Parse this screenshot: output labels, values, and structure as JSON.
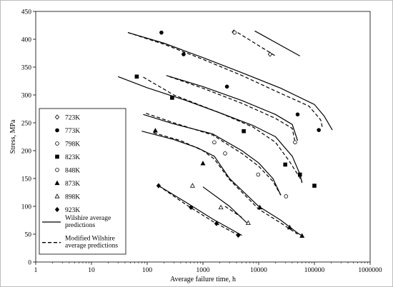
{
  "chart_data": {
    "type": "scatter",
    "xlabel": "Average failure time, h",
    "ylabel": "Stress, MPa",
    "xscale": "log",
    "xlim": [
      1,
      1000000
    ],
    "ylim": [
      0,
      450
    ],
    "x_ticks": [
      "1",
      "10",
      "100",
      "1000",
      "10000",
      "100000",
      "1000000"
    ],
    "y_ticks": [
      "0",
      "50",
      "100",
      "150",
      "200",
      "250",
      "300",
      "350",
      "400",
      "450"
    ],
    "grid": false,
    "legend_position": "lower-left",
    "series": [
      {
        "name": "723K",
        "marker": "diamond-open",
        "points": [
          [
            3600,
            413
          ],
          [
            16000,
            373
          ]
        ]
      },
      {
        "name": "773K",
        "marker": "circle-filled",
        "points": [
          [
            180,
            412
          ],
          [
            450,
            373
          ],
          [
            2700,
            315
          ],
          [
            50000,
            265
          ],
          [
            120000,
            237
          ]
        ]
      },
      {
        "name": "798K",
        "marker": "circle-open",
        "points": [
          [
            3700,
            412
          ],
          [
            45000,
            215
          ]
        ]
      },
      {
        "name": "823K",
        "marker": "square-filled",
        "points": [
          [
            65,
            333
          ],
          [
            280,
            295
          ],
          [
            5400,
            235
          ],
          [
            30000,
            175
          ],
          [
            55000,
            157
          ],
          [
            100000,
            137
          ]
        ]
      },
      {
        "name": "848K",
        "marker": "circle-open",
        "points": [
          [
            1600,
            215
          ],
          [
            2500,
            195
          ],
          [
            9800,
            157
          ],
          [
            31000,
            118
          ]
        ]
      },
      {
        "name": "873K",
        "marker": "triangle-filled",
        "points": [
          [
            140,
            236
          ],
          [
            1000,
            177
          ],
          [
            10500,
            98
          ],
          [
            36000,
            62
          ],
          [
            60000,
            47
          ]
        ]
      },
      {
        "name": "898K",
        "marker": "triangle-open",
        "points": [
          [
            650,
            137
          ],
          [
            2100,
            98
          ],
          [
            6500,
            70
          ]
        ]
      },
      {
        "name": "923K",
        "marker": "diamond-filled",
        "points": [
          [
            160,
            137
          ],
          [
            610,
            98
          ],
          [
            1750,
            69
          ],
          [
            4300,
            48
          ]
        ]
      }
    ],
    "curves": [
      {
        "name": "Wilshire average predictions",
        "style": "solid",
        "lines": [
          [
            [
              8500,
              415
            ],
            [
              55000,
              370
            ]
          ],
          [
            [
              45,
              412
            ],
            [
              200,
              393
            ],
            [
              1000,
              367
            ],
            [
              5000,
              340
            ],
            [
              25000,
              312
            ],
            [
              100000,
              283
            ],
            [
              150000,
              262
            ],
            [
              210000,
              237
            ]
          ],
          [
            [
              220,
              335
            ],
            [
              1000,
              315
            ],
            [
              5000,
              290
            ],
            [
              20000,
              265
            ],
            [
              40000,
              247
            ],
            [
              50000,
              218
            ]
          ],
          [
            [
              30,
              333
            ],
            [
              100,
              313
            ],
            [
              500,
              290
            ],
            [
              2000,
              268
            ],
            [
              8000,
              245
            ],
            [
              20000,
              225
            ],
            [
              40000,
              190
            ],
            [
              55000,
              158
            ],
            [
              60000,
              142
            ]
          ],
          [
            [
              85,
              265
            ],
            [
              300,
              248
            ],
            [
              1500,
              230
            ],
            [
              5000,
              200
            ],
            [
              10000,
              178
            ],
            [
              18000,
              150
            ],
            [
              25000,
              120
            ]
          ],
          [
            [
              80,
              235
            ],
            [
              300,
              220
            ],
            [
              800,
              205
            ],
            [
              1600,
              190
            ],
            [
              3000,
              150
            ],
            [
              10000,
              100
            ],
            [
              25000,
              75
            ],
            [
              50000,
              52
            ],
            [
              60000,
              47
            ]
          ],
          [
            [
              1000,
              135
            ],
            [
              3000,
              100
            ],
            [
              6500,
              68
            ]
          ],
          [
            [
              160,
              137
            ],
            [
              500,
              107
            ],
            [
              1500,
              77
            ],
            [
              5000,
              48
            ]
          ]
        ]
      },
      {
        "name": "Modified Wilshire average predictions",
        "style": "dashed",
        "lines": [
          [
            [
              4200,
              412
            ],
            [
              20000,
              370
            ]
          ],
          [
            [
              45,
              412
            ],
            [
              200,
              391
            ],
            [
              1000,
              364
            ],
            [
              5000,
              335
            ],
            [
              20000,
              307
            ],
            [
              80000,
              280
            ],
            [
              130000,
              255
            ],
            [
              140000,
              240
            ]
          ],
          [
            [
              250,
              333
            ],
            [
              1000,
              312
            ],
            [
              5000,
              285
            ],
            [
              20000,
              258
            ],
            [
              40000,
              240
            ],
            [
              45000,
              215
            ]
          ],
          [
            [
              85,
              332
            ],
            [
              300,
              300
            ],
            [
              2000,
              268
            ],
            [
              8000,
              242
            ],
            [
              20000,
              215
            ],
            [
              35000,
              182
            ],
            [
              60000,
              145
            ]
          ],
          [
            [
              95,
              267
            ],
            [
              300,
              250
            ],
            [
              1500,
              228
            ],
            [
              5000,
              195
            ],
            [
              10000,
              172
            ],
            [
              18000,
              145
            ],
            [
              25000,
              120
            ]
          ],
          [
            [
              130,
              232
            ],
            [
              400,
              218
            ],
            [
              1000,
              200
            ],
            [
              1600,
              185
            ],
            [
              3000,
              148
            ],
            [
              10000,
              95
            ],
            [
              25000,
              70
            ],
            [
              50000,
              50
            ]
          ],
          [
            [
              2500,
              100
            ],
            [
              5000,
              80
            ]
          ],
          [
            [
              160,
              137
            ],
            [
              500,
              103
            ],
            [
              1500,
              73
            ],
            [
              4500,
              47
            ]
          ]
        ]
      }
    ]
  }
}
